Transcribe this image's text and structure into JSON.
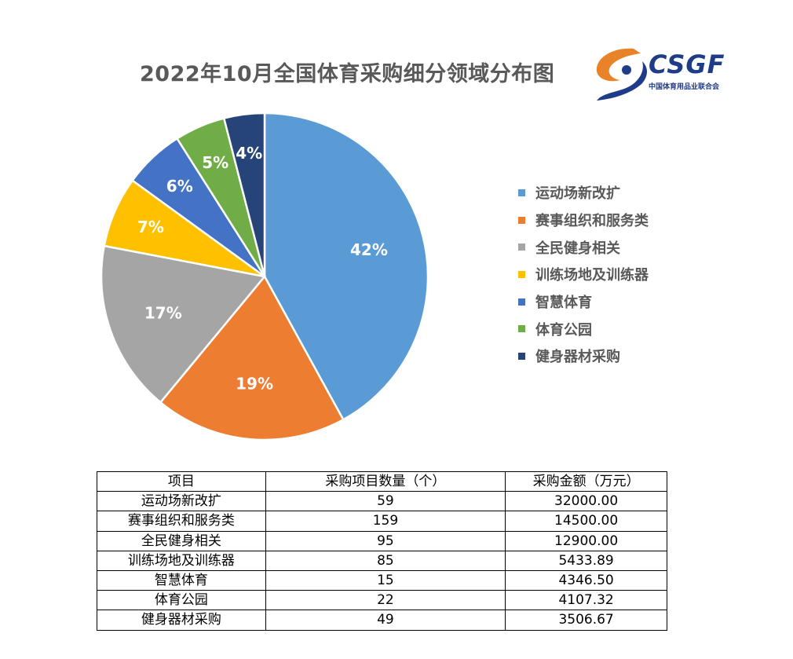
{
  "title": "2022年10月全国体育采购细分领域分布图",
  "logo": {
    "text": "CSGF",
    "subtitle": "中国体育用品业联合会",
    "colors": {
      "orange": "#e8832a",
      "blue": "#1f3c88"
    }
  },
  "chart_data": {
    "type": "pie",
    "title": "2022年10月全国体育采购细分领域分布图",
    "legend_position": "right",
    "categories": [
      "运动场新改扩",
      "赛事组织和服务类",
      "全民健身相关",
      "训练场地及训练器",
      "智慧体育",
      "体育公园",
      "健身器材采购"
    ],
    "values": [
      42,
      19,
      17,
      7,
      6,
      5,
      4
    ],
    "labels": [
      "42%",
      "19%",
      "17%",
      "7%",
      "6%",
      "5%",
      "4%"
    ],
    "colors": [
      "#5b9bd5",
      "#ed7d31",
      "#a5a5a5",
      "#ffc000",
      "#4472c4",
      "#70ad47",
      "#264478"
    ]
  },
  "table": {
    "headers": [
      "项目",
      "采购项目数量（个）",
      "采购金额（万元）"
    ],
    "rows": [
      [
        "运动场新改扩",
        "59",
        "32000.00"
      ],
      [
        "赛事组织和服务类",
        "159",
        "14500.00"
      ],
      [
        "全民健身相关",
        "95",
        "12900.00"
      ],
      [
        "训练场地及训练器",
        "85",
        "5433.89"
      ],
      [
        "智慧体育",
        "15",
        "4346.50"
      ],
      [
        "体育公园",
        "22",
        "4107.32"
      ],
      [
        "健身器材采购",
        "49",
        "3506.67"
      ]
    ]
  }
}
